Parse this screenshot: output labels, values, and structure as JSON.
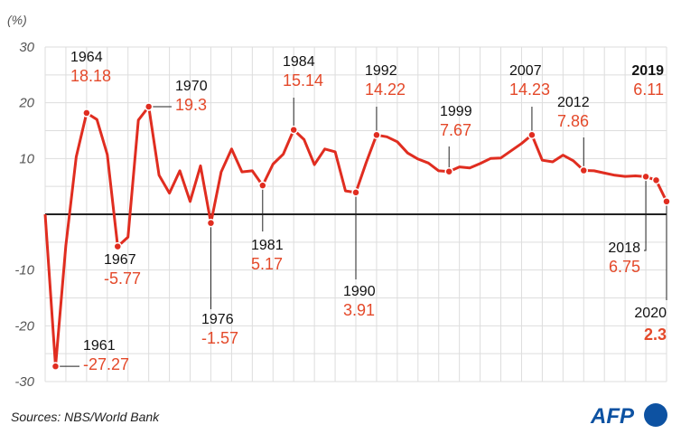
{
  "chart_data": {
    "type": "line",
    "unit_label": "(%)",
    "ylim": [
      -30,
      30
    ],
    "yticks": [
      30,
      20,
      10,
      -10,
      -20,
      -30
    ],
    "x": [
      1960,
      1961,
      1962,
      1963,
      1964,
      1965,
      1966,
      1967,
      1968,
      1969,
      1970,
      1971,
      1972,
      1973,
      1974,
      1975,
      1976,
      1977,
      1978,
      1979,
      1980,
      1981,
      1982,
      1983,
      1984,
      1985,
      1986,
      1987,
      1988,
      1989,
      1990,
      1991,
      1992,
      1993,
      1994,
      1995,
      1996,
      1997,
      1998,
      1999,
      2000,
      2001,
      2002,
      2003,
      2004,
      2005,
      2006,
      2007,
      2008,
      2009,
      2010,
      2011,
      2012,
      2013,
      2014,
      2015,
      2016,
      2017,
      2018,
      2019,
      2020
    ],
    "values": [
      0.0,
      -27.27,
      -5.6,
      10.3,
      18.18,
      17.0,
      10.7,
      -5.77,
      -4.1,
      16.9,
      19.3,
      7.0,
      3.8,
      7.8,
      2.3,
      8.7,
      -1.57,
      7.6,
      11.7,
      7.6,
      7.8,
      5.17,
      9.0,
      10.8,
      15.14,
      13.4,
      8.9,
      11.7,
      11.2,
      4.2,
      3.91,
      9.3,
      14.22,
      13.9,
      13.0,
      11.0,
      9.9,
      9.2,
      7.8,
      7.67,
      8.5,
      8.3,
      9.1,
      10.0,
      10.1,
      11.4,
      12.7,
      14.23,
      9.7,
      9.4,
      10.6,
      9.6,
      7.86,
      7.8,
      7.4,
      7.0,
      6.8,
      6.9,
      6.75,
      6.11,
      2.3
    ],
    "annotations": [
      {
        "year": "1961",
        "value": "-27.27"
      },
      {
        "year": "1964",
        "value": "18.18"
      },
      {
        "year": "1967",
        "value": "-5.77"
      },
      {
        "year": "1970",
        "value": "19.3"
      },
      {
        "year": "1976",
        "value": "-1.57"
      },
      {
        "year": "1981",
        "value": "5.17"
      },
      {
        "year": "1984",
        "value": "15.14"
      },
      {
        "year": "1990",
        "value": "3.91"
      },
      {
        "year": "1992",
        "value": "14.22"
      },
      {
        "year": "1999",
        "value": "7.67"
      },
      {
        "year": "2007",
        "value": "14.23"
      },
      {
        "year": "2012",
        "value": "7.86"
      },
      {
        "year": "2018",
        "value": "6.75"
      },
      {
        "year": "2019",
        "value": "6.11"
      },
      {
        "year": "2020",
        "value": "2.3"
      }
    ],
    "line_color": "#e02d20",
    "label_color": "#e4492a"
  },
  "source": "Sources: NBS/World Bank",
  "logo": "AFP",
  "colors": {
    "logo": "#0d52a2",
    "grid": "#dddddd",
    "zero_line": "#222222"
  }
}
